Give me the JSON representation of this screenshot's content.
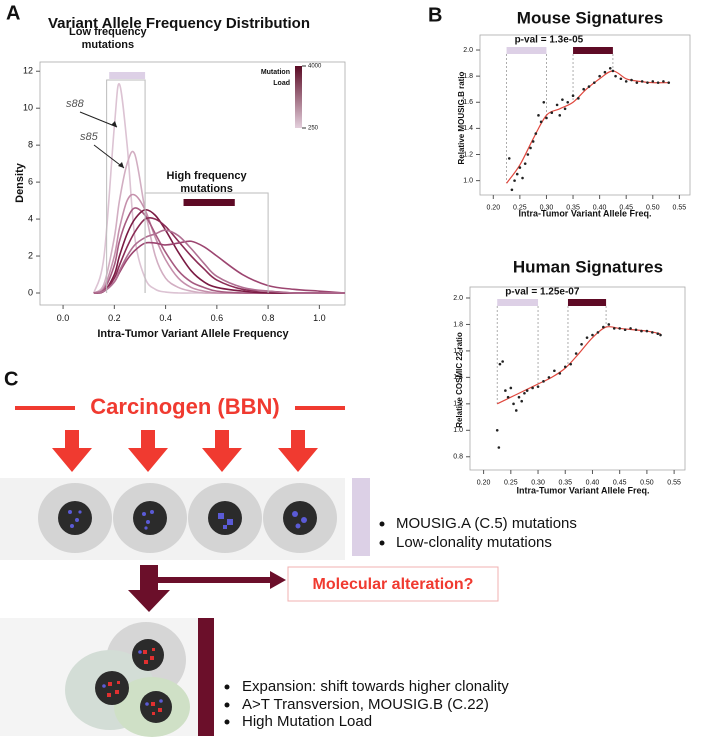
{
  "panel_labels": [
    "A",
    "B",
    "C"
  ],
  "chart_data": [
    {
      "type": "line",
      "title": "Variant Allele Frequency Distribution",
      "xlabel": "Intra-Tumor Variant Allele Frequency",
      "ylabel": "Density",
      "x": [
        0.12,
        0.16,
        0.2,
        0.22,
        0.25,
        0.28,
        0.32,
        0.36,
        0.4,
        0.45,
        0.5,
        0.55,
        0.6,
        0.7,
        0.8,
        0.9,
        1.0,
        1.1
      ],
      "series": [
        {
          "name": "s88",
          "color": "#dcc3d3",
          "values": [
            0,
            2,
            9,
            11.3,
            8,
            3,
            0.8,
            0.2,
            0.05,
            0,
            0,
            0,
            0,
            0,
            0,
            0,
            0,
            0
          ]
        },
        {
          "name": "s85",
          "color": "#d2aec2",
          "values": [
            0,
            0.5,
            3,
            5,
            7,
            7.5,
            4.5,
            2,
            0.8,
            0.3,
            0.1,
            0,
            0,
            0,
            0,
            0,
            0,
            0
          ]
        },
        {
          "color": "#c590ac",
          "values": [
            0,
            0.3,
            2,
            3.5,
            5,
            5.3,
            4.5,
            3,
            1.8,
            0.8,
            0.3,
            0.1,
            0,
            0,
            0,
            0,
            0,
            0
          ]
        },
        {
          "color": "#a65a80",
          "values": [
            0,
            0.2,
            1.5,
            2.8,
            4,
            4.6,
            4.2,
            3.2,
            2.2,
            1.2,
            0.6,
            0.3,
            0.1,
            0,
            0,
            0,
            0,
            0
          ]
        },
        {
          "color": "#7a1a43",
          "values": [
            0,
            0.1,
            1,
            2,
            3.2,
            4,
            4.5,
            4.2,
            3.4,
            2.2,
            1.2,
            0.6,
            0.3,
            0.1,
            0,
            0,
            0,
            0
          ]
        },
        {
          "color": "#8a2c55",
          "values": [
            0,
            0.1,
            0.8,
            1.5,
            2.5,
            3.3,
            4,
            4,
            3.6,
            2.8,
            2,
            1.3,
            0.7,
            0.2,
            0.1,
            0,
            0,
            0
          ]
        },
        {
          "color": "#9c4570",
          "values": [
            0,
            0.1,
            0.6,
            1.1,
            1.8,
            2.3,
            2.7,
            2.7,
            2.6,
            2.7,
            2.8,
            2.5,
            2,
            1,
            0.4,
            0.2,
            0.1,
            0
          ]
        },
        {
          "color": "#b06f92",
          "values": [
            0,
            0.1,
            0.6,
            1.2,
            2,
            2.6,
            3,
            3.2,
            3.4,
            3.1,
            2.4,
            1.6,
            0.9,
            0.3,
            0.1,
            0,
            0,
            0
          ]
        }
      ],
      "annotations": [
        {
          "text": "s88",
          "series": 0
        },
        {
          "text": "s85",
          "series": 1
        }
      ],
      "regions": [
        {
          "label": [
            "Low frequency",
            "mutations"
          ],
          "range": [
            0.17,
            0.32
          ],
          "bar": [
            0.18,
            0.32
          ],
          "color": "#ddd0e6"
        },
        {
          "label": [
            "High frequency",
            "mutations"
          ],
          "range": [
            0.32,
            0.8
          ],
          "bar": [
            0.47,
            0.67
          ],
          "color": "#5e0a25"
        }
      ],
      "colorbar": {
        "title": [
          "Mutation",
          "Load"
        ],
        "range": [
          250,
          4000
        ],
        "colors": [
          "#e3cfdc",
          "#5a0a24"
        ],
        "ticks": [
          4000,
          250
        ]
      },
      "xlim": [
        -0.09,
        1.1
      ],
      "ylim": [
        -0.65,
        12.5
      ],
      "xticks": [
        {
          "value": 0,
          "label": "0.0"
        },
        0.2,
        0.4,
        0.6,
        0.8,
        {
          "value": 1,
          "label": "1.0"
        }
      ],
      "yticks": [
        0,
        2,
        4,
        6,
        8,
        10,
        12
      ]
    },
    {
      "type": "scatter",
      "title": "Mouse Signatures",
      "annotation": "p-val = 1.3e-05",
      "xlabel": "Intra-Tumor Variant Allele Freq.",
      "ylabel": "Relative MOUSIG.B ratio",
      "color": "#222",
      "x": [
        0.23,
        0.235,
        0.24,
        0.245,
        0.25,
        0.255,
        0.26,
        0.265,
        0.27,
        0.275,
        0.28,
        0.285,
        0.29,
        0.295,
        0.3,
        0.31,
        0.32,
        0.325,
        0.33,
        0.335,
        0.34,
        0.35,
        0.36,
        0.37,
        0.38,
        0.39,
        0.4,
        0.41,
        0.42,
        0.425,
        0.43,
        0.44,
        0.45,
        0.46,
        0.47,
        0.48,
        0.49,
        0.5,
        0.51,
        0.52,
        0.53
      ],
      "values": [
        1.17,
        0.93,
        1.0,
        1.05,
        1.1,
        1.02,
        1.13,
        1.2,
        1.25,
        1.3,
        1.36,
        1.5,
        1.45,
        1.6,
        1.48,
        1.52,
        1.58,
        1.5,
        1.62,
        1.55,
        1.6,
        1.65,
        1.63,
        1.7,
        1.72,
        1.75,
        1.8,
        1.83,
        1.86,
        1.84,
        1.8,
        1.78,
        1.76,
        1.77,
        1.75,
        1.76,
        1.75,
        1.76,
        1.75,
        1.76,
        1.75
      ],
      "trend": {
        "color": "#e0483e",
        "x": [
          0.225,
          0.25,
          0.275,
          0.3,
          0.325,
          0.35,
          0.375,
          0.4,
          0.425,
          0.45,
          0.475,
          0.5,
          0.53
        ],
        "values": [
          0.98,
          1.12,
          1.32,
          1.5,
          1.55,
          1.6,
          1.7,
          1.78,
          1.84,
          1.78,
          1.76,
          1.75,
          1.75
        ]
      },
      "regions": [
        {
          "range": [
            0.225,
            0.3
          ],
          "color": "#ddd0e6"
        },
        {
          "range": [
            0.35,
            0.425
          ],
          "color": "#5e0a25"
        }
      ],
      "xlim": [
        0.175,
        0.57
      ],
      "ylim": [
        0.89,
        2.115
      ],
      "xticks": [
        {
          "value": 0.2,
          "label": "0.20"
        },
        0.25,
        {
          "value": 0.3,
          "label": "0.30"
        },
        0.35,
        {
          "value": 0.4,
          "label": "0.40"
        },
        0.45,
        {
          "value": 0.5,
          "label": "0.50"
        },
        0.55
      ],
      "yticks": [
        {
          "value": 1,
          "label": "1.0"
        },
        1.2,
        1.4,
        1.6,
        1.8,
        {
          "value": 2,
          "label": "2.0"
        }
      ]
    },
    {
      "type": "scatter",
      "title": "Human Signatures",
      "annotation": "p-val = 1.25e-07",
      "xlabel": "Intra-Tumor Variant Allele Freq.",
      "ylabel": "Relative COSMIC 22 ratio",
      "color": "#222",
      "x": [
        0.225,
        0.228,
        0.23,
        0.235,
        0.24,
        0.245,
        0.25,
        0.255,
        0.26,
        0.265,
        0.27,
        0.275,
        0.28,
        0.29,
        0.3,
        0.31,
        0.32,
        0.33,
        0.34,
        0.35,
        0.36,
        0.37,
        0.38,
        0.39,
        0.4,
        0.41,
        0.42,
        0.43,
        0.44,
        0.45,
        0.46,
        0.47,
        0.48,
        0.49,
        0.5,
        0.51,
        0.52,
        0.525
      ],
      "values": [
        1.0,
        0.87,
        1.5,
        1.52,
        1.3,
        1.25,
        1.32,
        1.2,
        1.15,
        1.25,
        1.22,
        1.28,
        1.3,
        1.32,
        1.33,
        1.37,
        1.4,
        1.45,
        1.43,
        1.48,
        1.5,
        1.58,
        1.65,
        1.7,
        1.72,
        1.74,
        1.78,
        1.8,
        1.77,
        1.77,
        1.76,
        1.77,
        1.76,
        1.75,
        1.75,
        1.74,
        1.73,
        1.72
      ],
      "trend": {
        "color": "#e0483e",
        "x": [
          0.225,
          0.25,
          0.275,
          0.3,
          0.325,
          0.35,
          0.375,
          0.4,
          0.425,
          0.45,
          0.475,
          0.5,
          0.525
        ],
        "values": [
          1.2,
          1.25,
          1.3,
          1.35,
          1.4,
          1.47,
          1.58,
          1.7,
          1.78,
          1.77,
          1.76,
          1.75,
          1.73
        ]
      },
      "regions": [
        {
          "range": [
            0.225,
            0.3
          ],
          "color": "#ddd0e6"
        },
        {
          "range": [
            0.355,
            0.425
          ],
          "color": "#5e0a25"
        }
      ],
      "xlim": [
        0.175,
        0.57
      ],
      "ylim": [
        0.7,
        2.083
      ],
      "xticks": [
        {
          "value": 0.2,
          "label": "0.20"
        },
        0.25,
        {
          "value": 0.3,
          "label": "0.30"
        },
        0.35,
        {
          "value": 0.4,
          "label": "0.40"
        },
        0.45,
        {
          "value": 0.5,
          "label": "0.50"
        },
        0.55
      ],
      "yticks": [
        0.8,
        {
          "value": 1,
          "label": "1.0"
        },
        1.2,
        1.4,
        1.6,
        1.8,
        {
          "value": 2,
          "label": "2.0"
        }
      ]
    }
  ],
  "diagram": {
    "carcinogen": "Carcinogen (BBN)",
    "stage1_notes": [
      "MOUSIG.A (C.5) mutations",
      "Low-clonality mutations"
    ],
    "question": "Molecular alteration?",
    "stage2_notes": [
      "Expansion: shift towards higher clonality",
      "A>T Transversion, MOUSIG.B (C.22)",
      "High Mutation Load"
    ]
  }
}
